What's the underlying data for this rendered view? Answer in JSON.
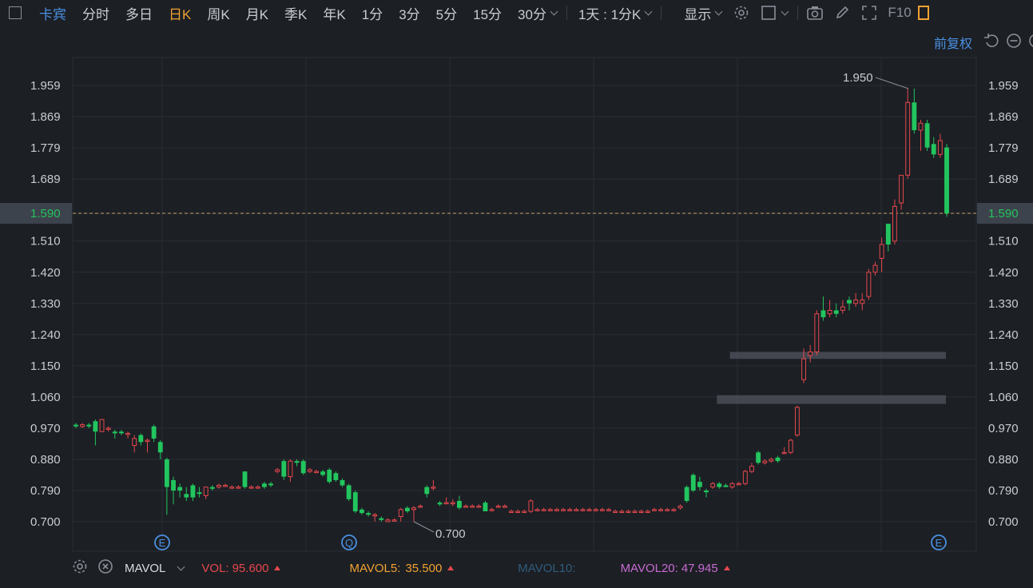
{
  "toolbar": {
    "stock_name": "卡宾",
    "tabs": [
      "分时",
      "多日",
      "日K",
      "周K",
      "月K",
      "季K",
      "年K",
      "1分",
      "3分",
      "5分",
      "15分",
      "30分"
    ],
    "active_tab": "日K",
    "interval_select": "1天 : 1分K",
    "display_label": "显示",
    "f10_label": "F10"
  },
  "subbar": {
    "adjust_label": "前复权"
  },
  "colors": {
    "up": "#e5484d",
    "down": "#22c55e",
    "background": "#1c1f24",
    "grid": "#2a2e35",
    "accent_blue": "#4a90e2",
    "active_orange": "#f0a232"
  },
  "chart_data": {
    "type": "candlestick",
    "ylim": [
      0.655,
      2.0
    ],
    "yticks": [
      "1.959",
      "1.869",
      "1.779",
      "1.689",
      "1.590",
      "1.510",
      "1.420",
      "1.330",
      "1.240",
      "1.150",
      "1.060",
      "0.970",
      "0.880",
      "0.790",
      "0.700"
    ],
    "current_price": "1.590",
    "annotations": {
      "high_label": "1.950",
      "low_label": "0.700"
    },
    "event_markers": [
      {
        "label": "E",
        "index": 12
      },
      {
        "label": "Q",
        "index": 38
      },
      {
        "label": "E",
        "index": 121
      }
    ],
    "price_zones": [
      {
        "low": 1.17,
        "high": 1.19,
        "from_index": 101
      },
      {
        "low": 1.04,
        "high": 1.065,
        "from_index": 99
      }
    ],
    "candles": [
      [
        0.98,
        0.975,
        0.985,
        0.97
      ],
      [
        0.975,
        0.98,
        0.985,
        0.97
      ],
      [
        0.98,
        0.975,
        0.985,
        0.97
      ],
      [
        0.99,
        0.96,
        0.995,
        0.92
      ],
      [
        0.96,
        0.995,
        0.995,
        0.96
      ],
      [
        0.97,
        0.97,
        0.975,
        0.96
      ],
      [
        0.96,
        0.955,
        0.965,
        0.94
      ],
      [
        0.96,
        0.955,
        0.965,
        0.95
      ],
      [
        0.955,
        0.955,
        0.96,
        0.94
      ],
      [
        0.92,
        0.94,
        0.95,
        0.9
      ],
      [
        0.95,
        0.93,
        0.955,
        0.92
      ],
      [
        0.935,
        0.935,
        0.94,
        0.9
      ],
      [
        0.975,
        0.94,
        0.98,
        0.93
      ],
      [
        0.93,
        0.9,
        0.935,
        0.88
      ],
      [
        0.88,
        0.8,
        0.885,
        0.72
      ],
      [
        0.82,
        0.79,
        0.83,
        0.75
      ],
      [
        0.8,
        0.79,
        0.81,
        0.77
      ],
      [
        0.78,
        0.77,
        0.8,
        0.76
      ],
      [
        0.805,
        0.77,
        0.81,
        0.76
      ],
      [
        0.785,
        0.78,
        0.8,
        0.77
      ],
      [
        0.775,
        0.8,
        0.8,
        0.765
      ],
      [
        0.8,
        0.795,
        0.805,
        0.79
      ],
      [
        0.8,
        0.805,
        0.81,
        0.795
      ],
      [
        0.805,
        0.805,
        0.81,
        0.8
      ],
      [
        0.8,
        0.8,
        0.805,
        0.795
      ],
      [
        0.8,
        0.8,
        0.805,
        0.795
      ],
      [
        0.845,
        0.8,
        0.845,
        0.795
      ],
      [
        0.8,
        0.8,
        0.805,
        0.795
      ],
      [
        0.8,
        0.8,
        0.805,
        0.795
      ],
      [
        0.81,
        0.8,
        0.815,
        0.795
      ],
      [
        0.81,
        0.805,
        0.815,
        0.8
      ],
      [
        0.845,
        0.85,
        0.855,
        0.84
      ],
      [
        0.875,
        0.83,
        0.88,
        0.82
      ],
      [
        0.83,
        0.875,
        0.88,
        0.815
      ],
      [
        0.875,
        0.87,
        0.88,
        0.86
      ],
      [
        0.875,
        0.84,
        0.88,
        0.835
      ],
      [
        0.845,
        0.85,
        0.855,
        0.84
      ],
      [
        0.845,
        0.845,
        0.85,
        0.84
      ],
      [
        0.845,
        0.835,
        0.85,
        0.83
      ],
      [
        0.85,
        0.815,
        0.855,
        0.81
      ],
      [
        0.84,
        0.82,
        0.845,
        0.815
      ],
      [
        0.82,
        0.805,
        0.825,
        0.8
      ],
      [
        0.805,
        0.765,
        0.81,
        0.76
      ],
      [
        0.785,
        0.73,
        0.79,
        0.725
      ],
      [
        0.735,
        0.725,
        0.74,
        0.72
      ],
      [
        0.725,
        0.72,
        0.73,
        0.715
      ],
      [
        0.72,
        0.72,
        0.725,
        0.7
      ],
      [
        0.71,
        0.705,
        0.715,
        0.7
      ],
      [
        0.7,
        0.705,
        0.71,
        0.7
      ],
      [
        0.705,
        0.705,
        0.71,
        0.7
      ],
      [
        0.715,
        0.735,
        0.74,
        0.7
      ],
      [
        0.74,
        0.73,
        0.745,
        0.725
      ],
      [
        0.735,
        0.74,
        0.745,
        0.7
      ],
      [
        0.745,
        0.745,
        0.75,
        0.74
      ],
      [
        0.8,
        0.78,
        0.805,
        0.77
      ],
      [
        0.8,
        0.8,
        0.82,
        0.79
      ],
      [
        0.755,
        0.75,
        0.76,
        0.745
      ],
      [
        0.755,
        0.755,
        0.77,
        0.75
      ],
      [
        0.755,
        0.755,
        0.765,
        0.745
      ],
      [
        0.76,
        0.74,
        0.775,
        0.735
      ],
      [
        0.745,
        0.745,
        0.75,
        0.74
      ],
      [
        0.745,
        0.745,
        0.75,
        0.74
      ],
      [
        0.745,
        0.745,
        0.75,
        0.74
      ],
      [
        0.755,
        0.73,
        0.76,
        0.73
      ],
      [
        0.735,
        0.735,
        0.74,
        0.73
      ],
      [
        0.745,
        0.745,
        0.75,
        0.74
      ],
      [
        0.745,
        0.745,
        0.75,
        0.74
      ],
      [
        0.73,
        0.73,
        0.735,
        0.725
      ],
      [
        0.73,
        0.73,
        0.735,
        0.725
      ],
      [
        0.73,
        0.73,
        0.735,
        0.725
      ],
      [
        0.73,
        0.76,
        0.765,
        0.725
      ],
      [
        0.735,
        0.735,
        0.74,
        0.73
      ],
      [
        0.735,
        0.735,
        0.74,
        0.73
      ],
      [
        0.735,
        0.735,
        0.74,
        0.73
      ],
      [
        0.735,
        0.735,
        0.74,
        0.73
      ],
      [
        0.735,
        0.735,
        0.74,
        0.73
      ],
      [
        0.735,
        0.735,
        0.74,
        0.73
      ],
      [
        0.735,
        0.735,
        0.74,
        0.73
      ],
      [
        0.735,
        0.735,
        0.74,
        0.73
      ],
      [
        0.735,
        0.735,
        0.74,
        0.73
      ],
      [
        0.735,
        0.735,
        0.74,
        0.73
      ],
      [
        0.735,
        0.735,
        0.74,
        0.73
      ],
      [
        0.735,
        0.735,
        0.74,
        0.73
      ],
      [
        0.73,
        0.73,
        0.735,
        0.725
      ],
      [
        0.73,
        0.73,
        0.735,
        0.725
      ],
      [
        0.73,
        0.73,
        0.735,
        0.725
      ],
      [
        0.73,
        0.73,
        0.735,
        0.725
      ],
      [
        0.73,
        0.73,
        0.735,
        0.725
      ],
      [
        0.73,
        0.73,
        0.735,
        0.725
      ],
      [
        0.735,
        0.735,
        0.74,
        0.73
      ],
      [
        0.735,
        0.735,
        0.74,
        0.73
      ],
      [
        0.735,
        0.735,
        0.74,
        0.73
      ],
      [
        0.735,
        0.735,
        0.74,
        0.73
      ],
      [
        0.74,
        0.745,
        0.75,
        0.735
      ],
      [
        0.8,
        0.76,
        0.805,
        0.755
      ],
      [
        0.835,
        0.79,
        0.84,
        0.785
      ],
      [
        0.815,
        0.8,
        0.83,
        0.79
      ],
      [
        0.79,
        0.785,
        0.795,
        0.77
      ],
      [
        0.8,
        0.81,
        0.815,
        0.795
      ],
      [
        0.81,
        0.8,
        0.815,
        0.795
      ],
      [
        0.805,
        0.8,
        0.81,
        0.8
      ],
      [
        0.8,
        0.81,
        0.815,
        0.795
      ],
      [
        0.81,
        0.81,
        0.815,
        0.805
      ]
    ],
    "candles_late": [
      [
        0.81,
        0.845,
        0.85,
        0.805
      ],
      [
        0.845,
        0.86,
        0.87,
        0.84
      ],
      [
        0.9,
        0.87,
        0.905,
        0.865
      ],
      [
        0.87,
        0.875,
        0.88,
        0.865
      ],
      [
        0.875,
        0.88,
        0.885,
        0.87
      ],
      [
        0.885,
        0.875,
        0.89,
        0.87
      ],
      [
        0.9,
        0.9,
        0.915,
        0.895
      ],
      [
        0.9,
        0.935,
        0.94,
        0.895
      ],
      [
        0.95,
        1.03,
        1.035,
        0.945
      ],
      [
        1.11,
        1.17,
        1.2,
        1.1
      ],
      [
        1.18,
        1.19,
        1.21,
        1.16
      ],
      [
        1.19,
        1.3,
        1.31,
        1.18
      ],
      [
        1.31,
        1.29,
        1.35,
        1.28
      ],
      [
        1.3,
        1.31,
        1.34,
        1.29
      ],
      [
        1.31,
        1.3,
        1.33,
        1.29
      ],
      [
        1.31,
        1.32,
        1.34,
        1.3
      ],
      [
        1.34,
        1.33,
        1.35,
        1.31
      ],
      [
        1.33,
        1.34,
        1.36,
        1.32
      ],
      [
        1.33,
        1.34,
        1.36,
        1.31
      ],
      [
        1.35,
        1.42,
        1.43,
        1.34
      ],
      [
        1.42,
        1.44,
        1.45,
        1.41
      ],
      [
        1.46,
        1.5,
        1.52,
        1.42
      ],
      [
        1.56,
        1.5,
        1.56,
        1.48
      ],
      [
        1.51,
        1.61,
        1.63,
        1.5
      ],
      [
        1.62,
        1.7,
        1.7,
        1.6
      ],
      [
        1.7,
        1.91,
        1.95,
        1.69
      ],
      [
        1.91,
        1.83,
        1.95,
        1.82
      ],
      [
        1.83,
        1.85,
        1.86,
        1.77
      ],
      [
        1.85,
        1.78,
        1.86,
        1.77
      ],
      [
        1.79,
        1.76,
        1.81,
        1.75
      ],
      [
        1.76,
        1.8,
        1.82,
        1.75
      ],
      [
        1.78,
        1.59,
        1.79,
        1.58
      ]
    ],
    "volume_indicators": {
      "name": "MAVOL",
      "vol": {
        "label": "VOL:",
        "value": "95.600",
        "trend": "up"
      },
      "mavol5": {
        "label": "MAVOL5:",
        "value": "35.500",
        "trend": "up"
      },
      "mavol10": {
        "label": "MAVOL10:",
        "value": ""
      },
      "mavol20": {
        "label": "MAVOL20:",
        "value": "47.945",
        "trend": "up"
      }
    }
  }
}
